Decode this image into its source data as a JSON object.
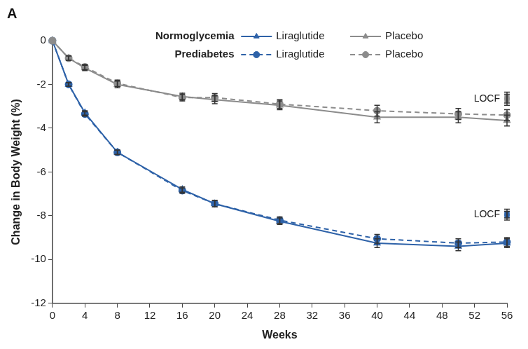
{
  "chart_data": {
    "type": "line",
    "title": "A",
    "x_label": "Weeks",
    "y_label": "Change in Body Weight (%)",
    "x": [
      0,
      2,
      4,
      8,
      16,
      20,
      28,
      40,
      50,
      56
    ],
    "xlim": [
      0,
      56
    ],
    "xticks": [
      0,
      4,
      8,
      12,
      16,
      20,
      24,
      28,
      32,
      36,
      40,
      44,
      48,
      52,
      56
    ],
    "ylim": [
      -12,
      0
    ],
    "yticks": [
      -12,
      -10,
      -8,
      -6,
      -4,
      -2,
      0
    ],
    "grid": false,
    "legend": "top",
    "series": [
      {
        "name": "Placebo",
        "group": "Normoglycemia",
        "color": "#8c8c8c",
        "marker": "triangle",
        "line_style": "solid",
        "values": [
          0,
          -0.8,
          -1.25,
          -2.0,
          -2.55,
          -2.7,
          -2.95,
          -3.5,
          -3.5,
          -3.65
        ],
        "errors": [
          0,
          0.1,
          0.12,
          0.15,
          0.15,
          0.18,
          0.2,
          0.25,
          0.25,
          0.25
        ],
        "locf": -2.7,
        "locf_error": 0.25
      },
      {
        "name": "Placebo",
        "group": "Prediabetes",
        "color": "#8c8c8c",
        "marker": "circle",
        "line_style": "dashed",
        "values": [
          0,
          -0.8,
          -1.2,
          -1.95,
          -2.6,
          -2.6,
          -2.9,
          -3.2,
          -3.35,
          -3.4
        ],
        "errors": [
          0,
          0.1,
          0.12,
          0.15,
          0.15,
          0.18,
          0.2,
          0.25,
          0.25,
          0.25
        ],
        "locf": -2.6,
        "locf_error": 0.25
      },
      {
        "name": "Liraglutide",
        "group": "Normoglycemia",
        "color": "#2e62a8",
        "marker": "triangle",
        "line_style": "solid",
        "values": [
          0,
          -2.0,
          -3.3,
          -5.1,
          -6.8,
          -7.45,
          -8.25,
          -9.25,
          -9.4,
          -9.25
        ],
        "errors": [
          0,
          0.08,
          0.1,
          0.1,
          0.12,
          0.15,
          0.15,
          0.2,
          0.2,
          0.2
        ],
        "locf": -8.0,
        "locf_error": 0.2
      },
      {
        "name": "Liraglutide",
        "group": "Prediabetes",
        "color": "#2e62a8",
        "marker": "circle",
        "line_style": "dashed",
        "values": [
          0,
          -2.0,
          -3.35,
          -5.1,
          -6.85,
          -7.45,
          -8.2,
          -9.05,
          -9.25,
          -9.2
        ],
        "errors": [
          0,
          0.08,
          0.1,
          0.1,
          0.12,
          0.15,
          0.15,
          0.2,
          0.2,
          0.2
        ],
        "locf": -7.9,
        "locf_error": 0.2
      }
    ],
    "annotations": [
      {
        "text": "LOCF",
        "x": 56,
        "y": -2.65
      },
      {
        "text": "LOCF",
        "x": 56,
        "y": -7.95
      }
    ]
  }
}
